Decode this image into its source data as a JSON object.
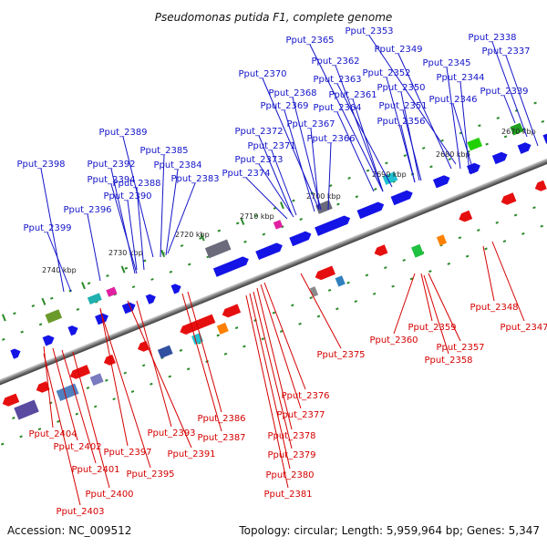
{
  "title": "Pseudomonas putida F1, complete genome",
  "footer": {
    "accession": "Accession: NC_009512",
    "summary": "Topology: circular; Length: 5,959,964 bp; Genes: 5,347"
  },
  "kbp_ticks": [
    "2670 kbp",
    "2680 kbp",
    "2690 kbp",
    "2700 kbp",
    "2710 kbp",
    "2720 kbp",
    "2730 kbp",
    "2740 kbp"
  ],
  "forward_gene_labels": [
    "Pput_2338",
    "Pput_2337",
    "Pput_2339",
    "Pput_2353",
    "Pput_2349",
    "Pput_2345",
    "Pput_2344",
    "Pput_2346",
    "Pput_2365",
    "Pput_2362",
    "Pput_2363",
    "Pput_2352",
    "Pput_2350",
    "Pput_2351",
    "Pput_2356",
    "Pput_2361",
    "Pput_2364",
    "Pput_2370",
    "Pput_2368",
    "Pput_2369",
    "Pput_2367",
    "Pput_2366",
    "Pput_2372",
    "Pput_2371",
    "Pput_2373",
    "Pput_2374",
    "Pput_2389",
    "Pput_2385",
    "Pput_2384",
    "Pput_2383",
    "Pput_2398",
    "Pput_2392",
    "Pput_2394",
    "Pput_2388",
    "Pput_2390",
    "Pput_2396",
    "Pput_2399"
  ],
  "reverse_gene_labels": [
    "Pput_2348",
    "Pput_2347",
    "Pput_2359",
    "Pput_2360",
    "Pput_2357",
    "Pput_2358",
    "Pput_2375",
    "Pput_2376",
    "Pput_2377",
    "Pput_2378",
    "Pput_2379",
    "Pput_2380",
    "Pput_2381",
    "Pput_2386",
    "Pput_2387",
    "Pput_2393",
    "Pput_2391",
    "Pput_2397",
    "Pput_2395",
    "Pput_2404",
    "Pput_2402",
    "Pput_2401",
    "Pput_2400",
    "Pput_2403"
  ],
  "colors": {
    "forward": "#1414e6",
    "reverse": "#e60f0f",
    "forward_label": "#1414c8",
    "reverse_label": "#d40000",
    "tick": "#2a8a2a",
    "backbone": "#8a8a8a"
  }
}
